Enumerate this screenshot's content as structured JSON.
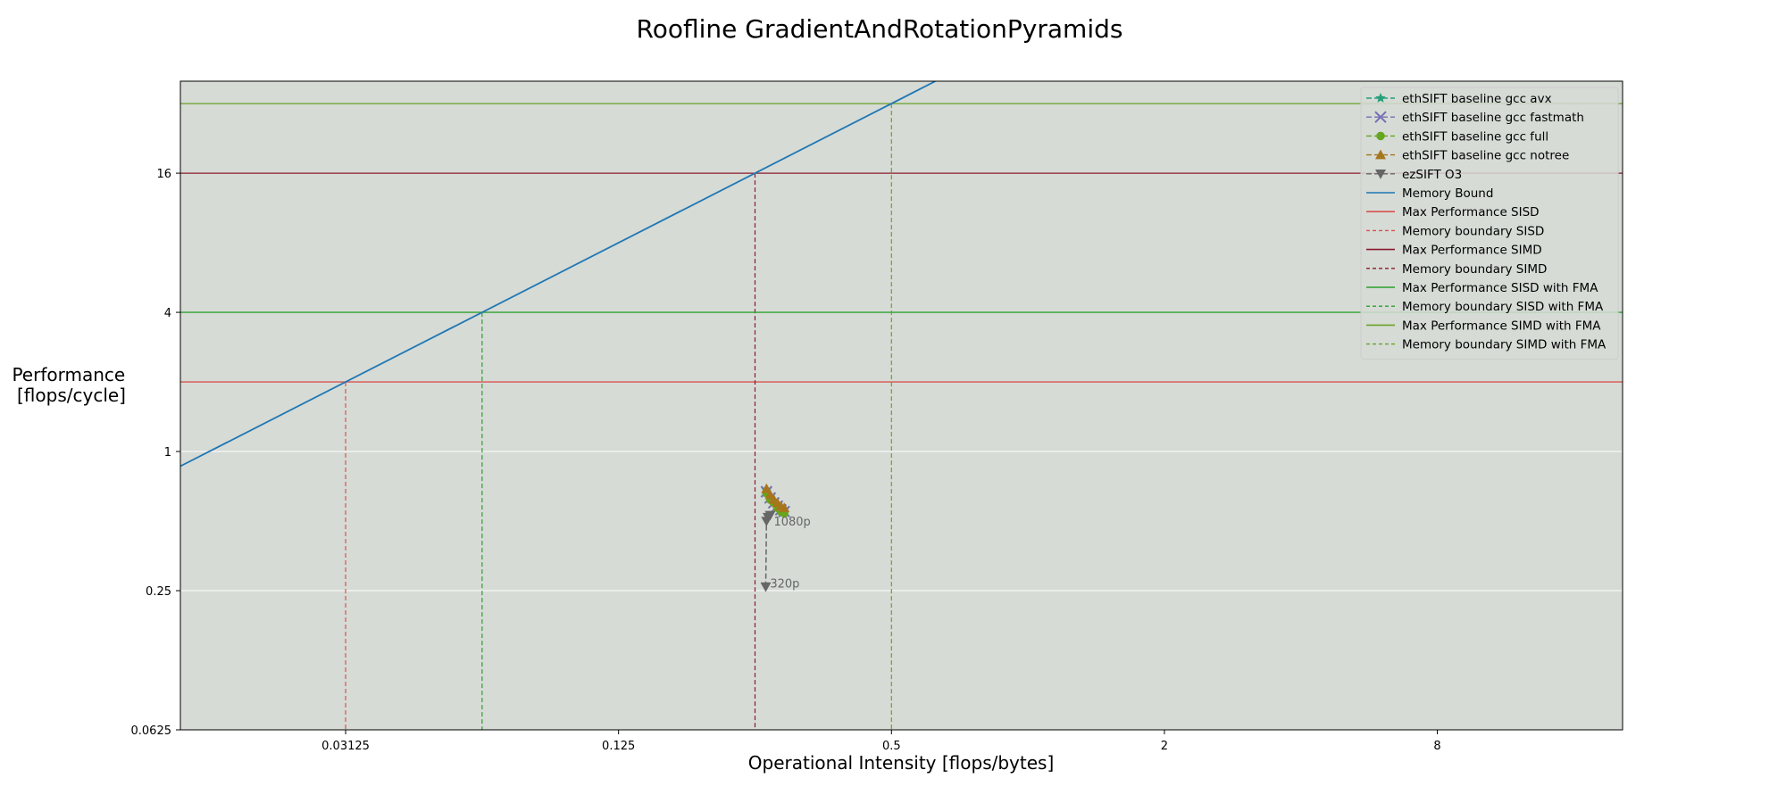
{
  "chart_data": {
    "type": "scatter",
    "title": "Roofline GradientAndRotationPyramids",
    "xlabel": "Operational Intensity [flops/bytes]",
    "ylabel_lines": [
      "Performance",
      "[flops/cycle]"
    ],
    "xscale": "log2",
    "yscale": "log2",
    "xlim": [
      0.0135,
      20.5
    ],
    "ylim": [
      0.0625,
      40
    ],
    "xticks": [
      {
        "value": 0.03125,
        "label": "0.03125"
      },
      {
        "value": 0.125,
        "label": "0.125"
      },
      {
        "value": 0.5,
        "label": "0.5"
      },
      {
        "value": 2,
        "label": "2"
      },
      {
        "value": 8,
        "label": "8"
      }
    ],
    "yticks": [
      {
        "value": 0.0625,
        "label": "0.0625"
      },
      {
        "value": 0.25,
        "label": "0.25"
      },
      {
        "value": 1,
        "label": "1"
      },
      {
        "value": 4,
        "label": "4"
      },
      {
        "value": 16,
        "label": "16"
      }
    ],
    "grid": true,
    "background_color": "#d6dbd6",
    "legend_position": "top-right",
    "memory_bound": {
      "name": "Memory Bound",
      "bandwidth": 64,
      "color": "#1f77b4"
    },
    "roofs": [
      {
        "name": "Max Performance SISD",
        "boundary_name": "Memory boundary SISD",
        "peak": 2,
        "color": "#d9534f"
      },
      {
        "name": "Max Performance SIMD",
        "boundary_name": "Memory boundary SIMD",
        "peak": 16,
        "color": "#8b1a2b"
      },
      {
        "name": "Max Performance SISD with FMA",
        "boundary_name": "Memory boundary SISD with FMA",
        "peak": 4,
        "color": "#2ca02c"
      },
      {
        "name": "Max Performance SIMD with FMA",
        "boundary_name": "Memory boundary SIMD with FMA",
        "peak": 32,
        "color": "#6ba225"
      }
    ],
    "series": [
      {
        "name": "ethSIFT baseline gcc avx",
        "color": "#26a07a",
        "marker": "star",
        "x": [
          0.265,
          0.27,
          0.275,
          0.28,
          0.285,
          0.29
        ],
        "y": [
          0.68,
          0.64,
          0.61,
          0.59,
          0.57,
          0.56
        ]
      },
      {
        "name": "ethSIFT baseline gcc fastmath",
        "color": "#7570b3",
        "marker": "x",
        "x": [
          0.265,
          0.27,
          0.275,
          0.28,
          0.285,
          0.29
        ],
        "y": [
          0.67,
          0.63,
          0.6,
          0.58,
          0.56,
          0.55
        ]
      },
      {
        "name": "ethSIFT baseline gcc full",
        "color": "#66a61e",
        "marker": "circle",
        "x": [
          0.265,
          0.27,
          0.275,
          0.28,
          0.285,
          0.29
        ],
        "y": [
          0.66,
          0.62,
          0.6,
          0.57,
          0.55,
          0.54
        ]
      },
      {
        "name": "ethSIFT baseline gcc notree",
        "color": "#a6761d",
        "marker": "triangle-up",
        "x": [
          0.265,
          0.27,
          0.275,
          0.28,
          0.285,
          0.29
        ],
        "y": [
          0.69,
          0.65,
          0.62,
          0.6,
          0.58,
          0.57
        ]
      },
      {
        "name": "ezSIFT O3",
        "color": "#666666",
        "marker": "triangle-down",
        "x": [
          0.264,
          0.265,
          0.267,
          0.27
        ],
        "y": [
          0.26,
          0.5,
          0.52,
          0.53
        ]
      }
    ],
    "annotations": [
      {
        "text": "1080p",
        "x": 0.27,
        "y": 0.5,
        "color": "#666666"
      },
      {
        "text": "320p",
        "x": 0.265,
        "y": 0.27,
        "color": "#666666"
      }
    ]
  }
}
